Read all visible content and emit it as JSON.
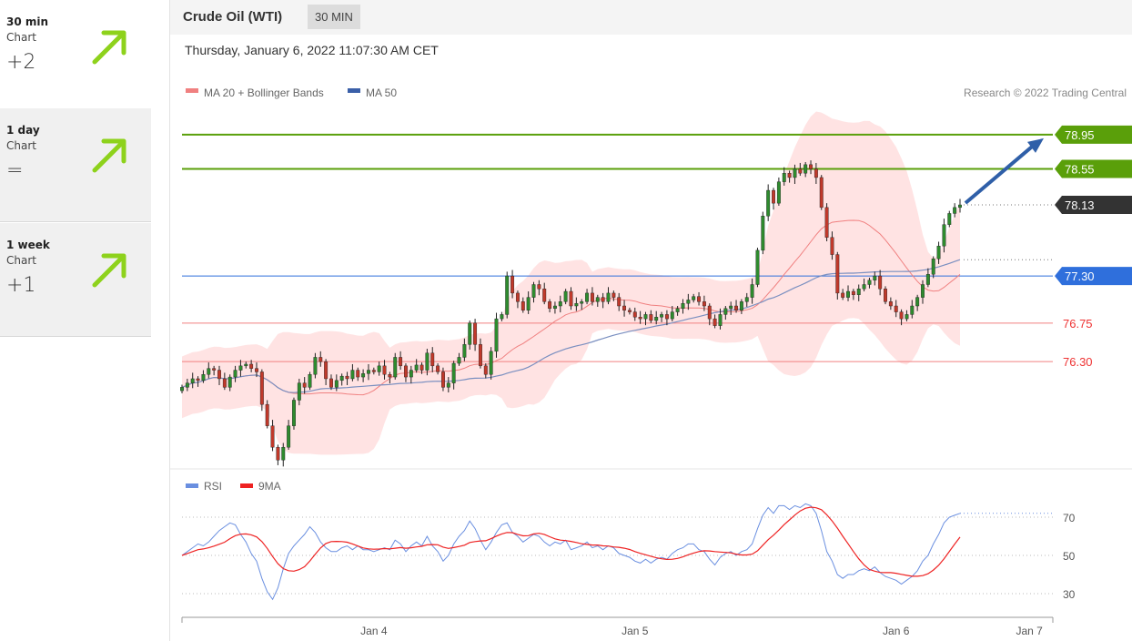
{
  "sidebar": {
    "cards": [
      {
        "title": "30 min",
        "subtitle": "Chart",
        "score": "+2"
      },
      {
        "title": "1 day",
        "subtitle": "Chart",
        "score": "="
      },
      {
        "title": "1 week",
        "subtitle": "Chart",
        "score": "+1"
      }
    ],
    "arrow_icon": "arrow-up-right-icon",
    "arrow_color": "#8ed21c"
  },
  "header": {
    "title": "Crude Oil (WTI)",
    "timeframe": "30 MIN",
    "date": "Thursday, January 6, 2022 11:07:30 AM CET"
  },
  "chart_data": {
    "type": "line",
    "legend": [
      {
        "label": "MA 20 + Bollinger Bands",
        "color": "#f08080"
      },
      {
        "label": "MA 50",
        "color": "#3a5fa8"
      }
    ],
    "credit": "Research © 2022 Trading Central",
    "ylim": [
      75.1,
      79.3
    ],
    "levels": [
      {
        "value": 78.95,
        "label": "78.95",
        "kind": "resistance",
        "color": "#5a9f0a"
      },
      {
        "value": 78.55,
        "label": "78.55",
        "kind": "resistance",
        "color": "#5a9f0a"
      },
      {
        "value": 78.13,
        "label": "78.13",
        "kind": "last",
        "color": "#333333"
      },
      {
        "value": 77.3,
        "label": "77.30",
        "kind": "pivot",
        "color": "#2f6fdc"
      },
      {
        "value": 76.75,
        "label": "76.75",
        "kind": "support",
        "color": "#f08080"
      },
      {
        "value": 76.3,
        "label": "76.30",
        "kind": "support",
        "color": "#f08080"
      }
    ],
    "x_ticks": [
      {
        "label": "Jan 4",
        "index": 36
      },
      {
        "label": "Jan 5",
        "index": 85
      },
      {
        "label": "Jan 6",
        "index": 134
      },
      {
        "label": "Jan 7",
        "index": 159
      }
    ],
    "closes": [
      76.0,
      76.05,
      76.1,
      76.08,
      76.15,
      76.22,
      76.2,
      76.1,
      76.0,
      76.12,
      76.2,
      76.25,
      76.27,
      76.22,
      76.18,
      75.8,
      75.55,
      75.3,
      75.15,
      75.3,
      75.55,
      75.85,
      76.05,
      76.0,
      76.15,
      76.35,
      76.3,
      76.1,
      76.0,
      76.08,
      76.13,
      76.1,
      76.2,
      76.12,
      76.16,
      76.2,
      76.18,
      76.25,
      76.15,
      76.12,
      76.35,
      76.25,
      76.12,
      76.2,
      76.26,
      76.2,
      76.4,
      76.25,
      76.18,
      76.0,
      76.05,
      76.28,
      76.35,
      76.5,
      76.75,
      76.5,
      76.25,
      76.15,
      76.42,
      76.8,
      76.85,
      77.3,
      77.1,
      77.0,
      76.9,
      77.05,
      77.2,
      77.15,
      77.0,
      76.92,
      76.95,
      77.0,
      77.12,
      76.95,
      76.98,
      77.0,
      77.1,
      77.0,
      77.05,
      77.0,
      77.1,
      77.05,
      76.95,
      76.9,
      76.88,
      76.82,
      76.8,
      76.85,
      76.78,
      76.82,
      76.85,
      76.8,
      76.88,
      76.92,
      76.98,
      77.02,
      77.06,
      77.0,
      76.95,
      76.8,
      76.72,
      76.85,
      76.92,
      76.95,
      76.9,
      77.0,
      77.05,
      77.2,
      77.6,
      78.0,
      78.3,
      78.15,
      78.4,
      78.5,
      78.45,
      78.55,
      78.5,
      78.6,
      78.55,
      78.45,
      78.1,
      77.75,
      77.55,
      77.1,
      77.05,
      77.12,
      77.08,
      77.15,
      77.2,
      77.25,
      77.3,
      77.15,
      77.0,
      76.95,
      76.88,
      76.8,
      76.85,
      76.95,
      77.05,
      77.2,
      77.32,
      77.5,
      77.65,
      77.9,
      78.03,
      78.1,
      78.13
    ],
    "rsi": {
      "lines": [
        70,
        50,
        30
      ],
      "legend": [
        {
          "label": "RSI",
          "color": "#6a8fe0"
        },
        {
          "label": "9MA",
          "color": "#ee2222"
        }
      ],
      "values": [
        50,
        52,
        54,
        56,
        55,
        57,
        60,
        63,
        65,
        67,
        66,
        61,
        57,
        51,
        47,
        38,
        31,
        27,
        33,
        43,
        51,
        55,
        58,
        61,
        65,
        62,
        57,
        54,
        52,
        52,
        54,
        55,
        53,
        55,
        53,
        53,
        52,
        53,
        54,
        53,
        58,
        56,
        52,
        55,
        57,
        55,
        60,
        55,
        52,
        47,
        50,
        56,
        60,
        63,
        68,
        64,
        58,
        53,
        57,
        62,
        66,
        67,
        62,
        60,
        57,
        59,
        61,
        60,
        57,
        55,
        57,
        56,
        58,
        53,
        54,
        55,
        57,
        54,
        55,
        53,
        55,
        54,
        51,
        50,
        49,
        47,
        46,
        48,
        46,
        48,
        49,
        48,
        51,
        53,
        54,
        56,
        56,
        53,
        52,
        48,
        45,
        49,
        51,
        52,
        50,
        52,
        53,
        56,
        64,
        71,
        75,
        72,
        76,
        76,
        74,
        76,
        75,
        77,
        76,
        72,
        63,
        52,
        47,
        40,
        38,
        40,
        40,
        42,
        43,
        42,
        44,
        41,
        39,
        38,
        37,
        35,
        37,
        39,
        42,
        47,
        50,
        56,
        61,
        67,
        70,
        71,
        72
      ]
    }
  }
}
